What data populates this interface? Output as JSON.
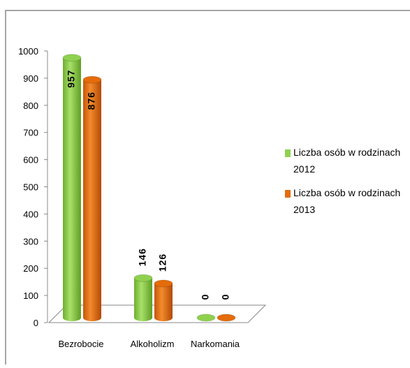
{
  "chart_data": {
    "type": "bar3d",
    "categories": [
      "Bezrobocie",
      "Alkoholizm",
      "Narkomania"
    ],
    "series": [
      {
        "name": "Liczba osób w rodzinach 2012",
        "color": "#8fd14f",
        "values": [
          957,
          146,
          0
        ]
      },
      {
        "name": "Liczba osób w rodzinach 2013",
        "color": "#e46c0a",
        "values": [
          876,
          126,
          0
        ]
      }
    ],
    "ylim": [
      0,
      1000
    ],
    "yticks": [
      0,
      100,
      200,
      300,
      400,
      500,
      600,
      700,
      800,
      900,
      1000
    ],
    "legend": "right"
  }
}
